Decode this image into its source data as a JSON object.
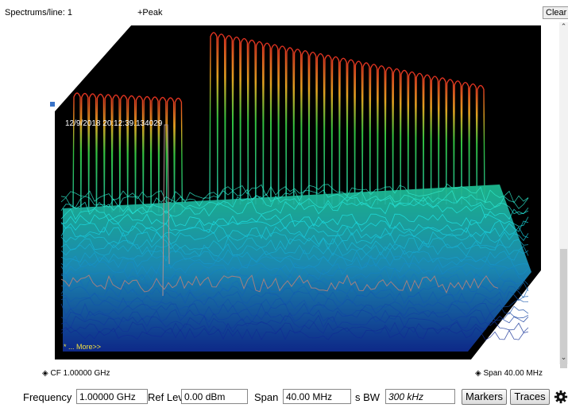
{
  "top": {
    "spectrums_label": "Spectrums/line: 1",
    "peak_label": "+Peak",
    "clear_label": "Clear"
  },
  "plot": {
    "timestamp": "12/9/2018 20:12:39.134029",
    "more_label": "* ... More>>"
  },
  "readouts": {
    "cf": "CF  1.00000 GHz",
    "span": "Span  40.00 MHz"
  },
  "toolbar": {
    "frequency_label": "Frequency",
    "frequency_value": "1.00000 GHz",
    "ref_lev_label": "Ref Lev",
    "ref_lev_value": "0.00 dBm",
    "span_label": "Span",
    "span_value": "40.00 MHz",
    "rbw_label": "s BW",
    "rbw_value": "300 kHz",
    "markers_label": "Markers",
    "traces_label": "Traces"
  },
  "icons": {
    "gear": "gear-icon"
  },
  "colors": {
    "plot_bg": "#000000",
    "peak": "#e03020",
    "mid": "#20c040",
    "floor": "#20c8c0",
    "accent": "#3a74c8"
  }
}
